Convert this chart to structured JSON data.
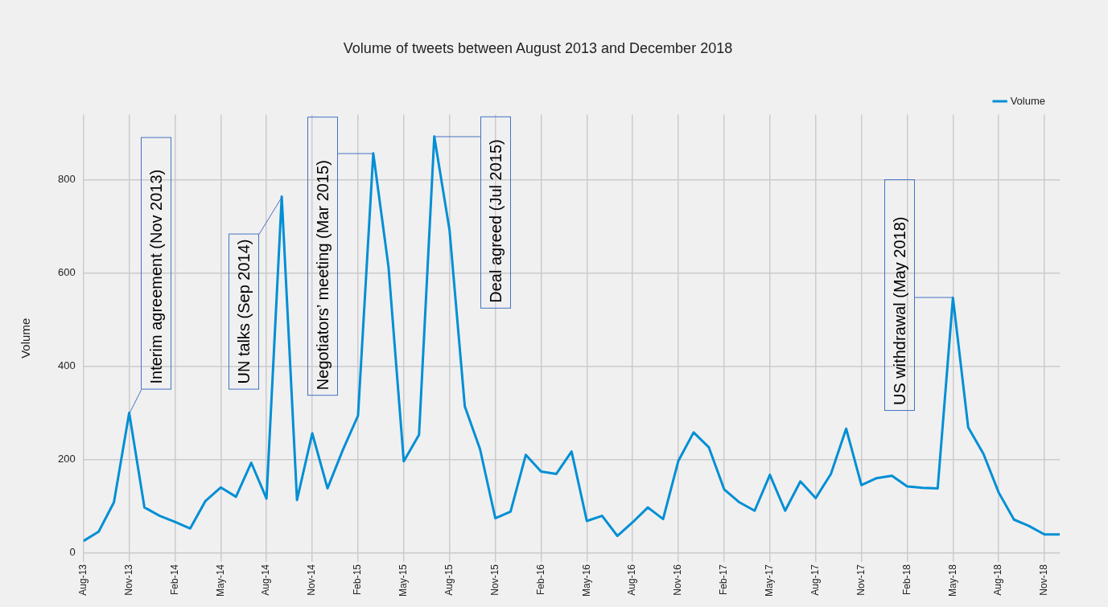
{
  "chart_data": {
    "type": "line",
    "title": "Volume of tweets between August 2013 and December 2018",
    "ylabel": "Volume",
    "x": [
      "2013-08",
      "2013-09",
      "2013-10",
      "2013-11",
      "2013-12",
      "2014-01",
      "2014-02",
      "2014-03",
      "2014-04",
      "2014-05",
      "2014-06",
      "2014-07",
      "2014-08",
      "2014-09",
      "2014-10",
      "2014-11",
      "2014-12",
      "2015-01",
      "2015-02",
      "2015-03",
      "2015-04",
      "2015-05",
      "2015-06",
      "2015-07",
      "2015-08",
      "2015-09",
      "2015-10",
      "2015-11",
      "2015-12",
      "2016-01",
      "2016-02",
      "2016-03",
      "2016-04",
      "2016-05",
      "2016-06",
      "2016-07",
      "2016-08",
      "2016-09",
      "2016-10",
      "2016-11",
      "2016-12",
      "2017-01",
      "2017-02",
      "2017-03",
      "2017-04",
      "2017-05",
      "2017-06",
      "2017-07",
      "2017-08",
      "2017-09",
      "2017-10",
      "2017-11",
      "2017-12",
      "2018-01",
      "2018-02",
      "2018-03",
      "2018-04",
      "2018-05",
      "2018-06",
      "2018-07",
      "2018-08",
      "2018-09",
      "2018-10",
      "2018-11",
      "2018-12"
    ],
    "series": [
      {
        "name": "Volume",
        "color": "#008fd5",
        "values": [
          25,
          45,
          108,
          300,
          97,
          79,
          66,
          52,
          111,
          140,
          120,
          193,
          116,
          764,
          113,
          256,
          138,
          220,
          294,
          857,
          613,
          196,
          253,
          893,
          692,
          314,
          222,
          74,
          88,
          210,
          174,
          169,
          217,
          68,
          79,
          36,
          65,
          97,
          72,
          197,
          258,
          226,
          136,
          108,
          90,
          167,
          90,
          153,
          117,
          169,
          266,
          145,
          160,
          165,
          142,
          139,
          138,
          547,
          269,
          212,
          129,
          71,
          57,
          39,
          39
        ]
      }
    ],
    "xlim": [
      "2013-08",
      "2018-12"
    ],
    "xticks": [
      {
        "value": "2013-08",
        "label": "Aug-13"
      },
      {
        "value": "2013-11",
        "label": "Nov-13"
      },
      {
        "value": "2014-02",
        "label": "Feb-14"
      },
      {
        "value": "2014-05",
        "label": "May-14"
      },
      {
        "value": "2014-08",
        "label": "Aug-14"
      },
      {
        "value": "2014-11",
        "label": "Nov-14"
      },
      {
        "value": "2015-02",
        "label": "Feb-15"
      },
      {
        "value": "2015-05",
        "label": "May-15"
      },
      {
        "value": "2015-08",
        "label": "Aug-15"
      },
      {
        "value": "2015-11",
        "label": "Nov-15"
      },
      {
        "value": "2016-02",
        "label": "Feb-16"
      },
      {
        "value": "2016-05",
        "label": "May-16"
      },
      {
        "value": "2016-08",
        "label": "Aug-16"
      },
      {
        "value": "2016-11",
        "label": "Nov-16"
      },
      {
        "value": "2017-02",
        "label": "Feb-17"
      },
      {
        "value": "2017-05",
        "label": "May-17"
      },
      {
        "value": "2017-08",
        "label": "Aug-17"
      },
      {
        "value": "2017-11",
        "label": "Nov-17"
      },
      {
        "value": "2018-02",
        "label": "Feb-18"
      },
      {
        "value": "2018-05",
        "label": "May-18"
      },
      {
        "value": "2018-08",
        "label": "Aug-18"
      },
      {
        "value": "2018-11",
        "label": "Nov-18"
      }
    ],
    "ylim": [
      -20,
      940
    ],
    "yticks": [
      0,
      200,
      400,
      600,
      800
    ],
    "grid": true,
    "legend": "top right",
    "marker": "none",
    "line_style": "solid",
    "annotations": [
      {
        "text": "Interim agreement (Nov 2013)",
        "x": "2013-11",
        "y": 300
      },
      {
        "text": "UN talks (Sep 2014)",
        "x": "2014-09",
        "y": 764
      },
      {
        "text": "Negotiators’ meeting (Mar 2015)",
        "x": "2015-03",
        "y": 857
      },
      {
        "text": "Deal agreed (Jul 2015)",
        "x": "2015-07",
        "y": 893
      },
      {
        "text": "US withdrawal (May 2018)",
        "x": "2018-05",
        "y": 547
      }
    ]
  }
}
